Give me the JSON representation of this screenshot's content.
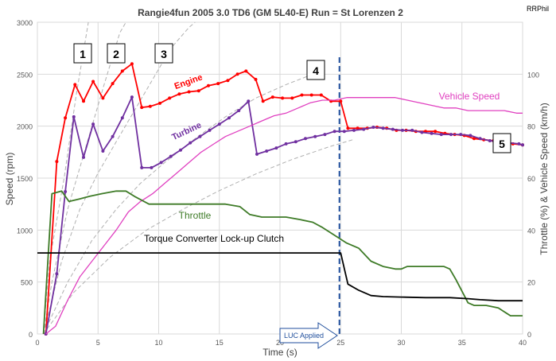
{
  "chart_data": {
    "type": "line",
    "title": "Rangie4fun   2005 3.0 TD6  (GM 5L40-E)   Run = St Lorenzen 2",
    "author": "RRPhil",
    "xlabel": "Time (s)",
    "ylabel_left": "Speed (rpm)",
    "ylabel_right": "Throttle (%) & Vehicle Speed (km/h)",
    "xlim": [
      0,
      40
    ],
    "ylim_left": [
      0,
      3000
    ],
    "ylim_right": [
      0,
      120
    ],
    "x_ticks": [
      "0",
      "5",
      "10",
      "15",
      "20",
      "25",
      "30",
      "35",
      "40"
    ],
    "y_left_ticks": [
      "0",
      "500",
      "1000",
      "1500",
      "2000",
      "2500",
      "3000"
    ],
    "y_right_ticks": [
      "0",
      "20",
      "40",
      "60",
      "80",
      "100"
    ],
    "grid": true,
    "series": [
      {
        "name": "Engine",
        "axis": "left",
        "color": "#ff0000",
        "points": [
          [
            0.7,
            0
          ],
          [
            1.6,
            1660
          ],
          [
            2.3,
            2080
          ],
          [
            3.1,
            2400
          ],
          [
            3.8,
            2240
          ],
          [
            4.6,
            2430
          ],
          [
            5.4,
            2270
          ],
          [
            6.2,
            2410
          ],
          [
            7.0,
            2530
          ],
          [
            7.8,
            2600
          ],
          [
            8.6,
            2180
          ],
          [
            9.3,
            2190
          ],
          [
            10.1,
            2220
          ],
          [
            10.9,
            2270
          ],
          [
            11.7,
            2310
          ],
          [
            12.5,
            2330
          ],
          [
            13.3,
            2340
          ],
          [
            14.1,
            2390
          ],
          [
            14.9,
            2410
          ],
          [
            15.7,
            2440
          ],
          [
            16.5,
            2500
          ],
          [
            17.2,
            2530
          ],
          [
            18.0,
            2450
          ],
          [
            18.6,
            2240
          ],
          [
            19.4,
            2280
          ],
          [
            20.2,
            2270
          ],
          [
            21.0,
            2270
          ],
          [
            21.8,
            2300
          ],
          [
            22.6,
            2300
          ],
          [
            23.4,
            2300
          ],
          [
            24.2,
            2240
          ],
          [
            25.0,
            2240
          ],
          [
            25.6,
            1980
          ],
          [
            26.4,
            1980
          ],
          [
            27.2,
            1980
          ],
          [
            28.0,
            1990
          ],
          [
            28.8,
            1980
          ],
          [
            29.6,
            1960
          ],
          [
            30.4,
            1960
          ],
          [
            31.2,
            1950
          ],
          [
            32.0,
            1950
          ],
          [
            32.8,
            1950
          ],
          [
            33.6,
            1930
          ],
          [
            34.4,
            1920
          ],
          [
            35.2,
            1910
          ],
          [
            36.0,
            1880
          ],
          [
            36.8,
            1870
          ],
          [
            37.6,
            1860
          ],
          [
            38.4,
            1860
          ],
          [
            39.2,
            1830
          ],
          [
            40.0,
            1820
          ]
        ]
      },
      {
        "name": "Turbine",
        "axis": "left",
        "color": "#7030a0",
        "points": [
          [
            0.7,
            0
          ],
          [
            1.6,
            580
          ],
          [
            2.3,
            1370
          ],
          [
            3.0,
            2090
          ],
          [
            3.8,
            1700
          ],
          [
            4.6,
            2020
          ],
          [
            5.4,
            1760
          ],
          [
            6.2,
            1900
          ],
          [
            7.0,
            2080
          ],
          [
            7.8,
            2280
          ],
          [
            8.6,
            1600
          ],
          [
            9.4,
            1600
          ],
          [
            10.2,
            1650
          ],
          [
            11.0,
            1710
          ],
          [
            11.8,
            1770
          ],
          [
            12.6,
            1840
          ],
          [
            13.4,
            1900
          ],
          [
            14.2,
            1960
          ],
          [
            15.0,
            2020
          ],
          [
            15.8,
            2080
          ],
          [
            16.6,
            2150
          ],
          [
            17.4,
            2240
          ],
          [
            18.1,
            1730
          ],
          [
            18.9,
            1760
          ],
          [
            19.7,
            1790
          ],
          [
            20.5,
            1830
          ],
          [
            21.3,
            1850
          ],
          [
            22.1,
            1880
          ],
          [
            22.9,
            1900
          ],
          [
            23.7,
            1920
          ],
          [
            24.5,
            1950
          ],
          [
            25.3,
            1950
          ],
          [
            26.1,
            1960
          ],
          [
            26.9,
            1970
          ],
          [
            27.7,
            1990
          ],
          [
            28.5,
            1980
          ],
          [
            29.3,
            1970
          ],
          [
            30.1,
            1960
          ],
          [
            30.9,
            1960
          ],
          [
            31.7,
            1940
          ],
          [
            32.5,
            1930
          ],
          [
            33.3,
            1920
          ],
          [
            34.1,
            1920
          ],
          [
            34.9,
            1920
          ],
          [
            35.7,
            1910
          ],
          [
            36.5,
            1880
          ],
          [
            37.3,
            1860
          ],
          [
            38.1,
            1850
          ],
          [
            38.9,
            1840
          ],
          [
            39.7,
            1830
          ],
          [
            40.0,
            1820
          ]
        ]
      },
      {
        "name": "Vehicle Speed",
        "axis": "right",
        "color": "#e040c0",
        "points": [
          [
            0.7,
            0
          ],
          [
            1.5,
            3
          ],
          [
            2.5,
            13
          ],
          [
            3.5,
            22
          ],
          [
            4.5,
            28
          ],
          [
            5.5,
            34
          ],
          [
            6.5,
            40
          ],
          [
            7.5,
            47
          ],
          [
            8.5,
            51
          ],
          [
            9.5,
            54
          ],
          [
            10.5,
            58
          ],
          [
            11.5,
            62
          ],
          [
            12.5,
            66
          ],
          [
            13.5,
            70
          ],
          [
            14.5,
            73
          ],
          [
            15.5,
            76
          ],
          [
            16.5,
            78
          ],
          [
            17.5,
            80
          ],
          [
            18.5,
            82
          ],
          [
            19.5,
            84
          ],
          [
            20.5,
            85
          ],
          [
            21.5,
            87
          ],
          [
            22.5,
            89
          ],
          [
            23.5,
            90
          ],
          [
            24.5,
            90
          ],
          [
            25.5,
            91
          ],
          [
            26.5,
            91
          ],
          [
            27.5,
            91
          ],
          [
            28.5,
            91
          ],
          [
            29.5,
            91
          ],
          [
            30.5,
            90
          ],
          [
            31.5,
            89
          ],
          [
            32.5,
            88
          ],
          [
            33.5,
            87
          ],
          [
            34.5,
            87
          ],
          [
            35.5,
            86
          ],
          [
            36.5,
            86
          ],
          [
            37.5,
            86
          ],
          [
            38.5,
            86
          ],
          [
            39.5,
            85
          ],
          [
            40.0,
            85
          ]
        ]
      },
      {
        "name": "Throttle",
        "axis": "right",
        "color": "#3e7b27",
        "points": [
          [
            0.5,
            0
          ],
          [
            1.2,
            54
          ],
          [
            2.0,
            55
          ],
          [
            2.6,
            51
          ],
          [
            3.5,
            52
          ],
          [
            4.3,
            53
          ],
          [
            5.3,
            54
          ],
          [
            6.5,
            55
          ],
          [
            7.3,
            55
          ],
          [
            8.0,
            53
          ],
          [
            9.2,
            50
          ],
          [
            10.5,
            50
          ],
          [
            12.0,
            50
          ],
          [
            13.5,
            50
          ],
          [
            15.5,
            50
          ],
          [
            16.7,
            49
          ],
          [
            17.5,
            46
          ],
          [
            18.5,
            45
          ],
          [
            19.5,
            45
          ],
          [
            20.5,
            45
          ],
          [
            21.7,
            44
          ],
          [
            22.7,
            43
          ],
          [
            23.5,
            41
          ],
          [
            24.5,
            38
          ],
          [
            25.5,
            35
          ],
          [
            26.5,
            33
          ],
          [
            27.5,
            28
          ],
          [
            28.5,
            26
          ],
          [
            29.5,
            25
          ],
          [
            30.0,
            25
          ],
          [
            30.5,
            26
          ],
          [
            31.5,
            26
          ],
          [
            32.5,
            26
          ],
          [
            33.5,
            26
          ],
          [
            34.0,
            25
          ],
          [
            34.5,
            21
          ],
          [
            35.5,
            12
          ],
          [
            36.0,
            11
          ],
          [
            37.0,
            11
          ],
          [
            38.0,
            10
          ],
          [
            39.0,
            7
          ],
          [
            40.0,
            7
          ]
        ]
      },
      {
        "name": "Torque Converter Lock-up Clutch",
        "axis": "left",
        "color": "#000000",
        "points": [
          [
            0,
            780
          ],
          [
            25.0,
            780
          ],
          [
            25.6,
            480
          ],
          [
            26.5,
            420
          ],
          [
            27.5,
            370
          ],
          [
            28.5,
            360
          ],
          [
            30,
            355
          ],
          [
            32,
            350
          ],
          [
            34,
            350
          ],
          [
            35.5,
            340
          ],
          [
            36.5,
            330
          ],
          [
            38,
            320
          ],
          [
            40,
            320
          ]
        ]
      }
    ],
    "reference_curves": {
      "color": "#b0b0b0",
      "style": "dashed",
      "curves": [
        [
          [
            0.5,
            0
          ],
          [
            1.0,
            700
          ],
          [
            2.2,
            1500
          ],
          [
            3.2,
            2300
          ],
          [
            4.2,
            3000
          ]
        ],
        [
          [
            0.5,
            0
          ],
          [
            1.2,
            500
          ],
          [
            2.5,
            1200
          ],
          [
            4.0,
            1800
          ],
          [
            5.5,
            2400
          ],
          [
            6.8,
            2900
          ],
          [
            7.3,
            3000
          ]
        ],
        [
          [
            0.5,
            0
          ],
          [
            2.0,
            700
          ],
          [
            3.5,
            1200
          ],
          [
            5.0,
            1550
          ],
          [
            6.5,
            1850
          ],
          [
            8.0,
            2150
          ],
          [
            9.5,
            2450
          ],
          [
            11.0,
            2750
          ],
          [
            12.5,
            2950
          ],
          [
            13.0,
            3000
          ]
        ],
        [
          [
            0.5,
            0
          ],
          [
            2.5,
            500
          ],
          [
            4.5,
            900
          ],
          [
            6.5,
            1200
          ],
          [
            8.5,
            1450
          ],
          [
            10.5,
            1650
          ],
          [
            13.0,
            1880
          ],
          [
            15.5,
            2090
          ],
          [
            18.0,
            2270
          ],
          [
            20.5,
            2400
          ],
          [
            22.5,
            2490
          ]
        ],
        [
          [
            0.5,
            0
          ],
          [
            3.0,
            400
          ],
          [
            6.0,
            740
          ],
          [
            9.0,
            1000
          ],
          [
            12.0,
            1200
          ],
          [
            15.0,
            1380
          ],
          [
            18.0,
            1540
          ],
          [
            21.0,
            1680
          ],
          [
            24.0,
            1800
          ],
          [
            26.0,
            1870
          ]
        ]
      ]
    },
    "luc_applied_time": 24.9,
    "annotations": [
      {
        "label": "Engine",
        "color": "#ff0000"
      },
      {
        "label": "Turbine",
        "color": "#7030a0"
      },
      {
        "label": "Vehicle Speed",
        "color": "#e040c0"
      },
      {
        "label": "Throttle",
        "color": "#3e7b27"
      },
      {
        "label": "Torque Converter Lock-up Clutch",
        "color": "#000000"
      },
      {
        "label": "LUC Applied",
        "color": "#1f4e9c"
      }
    ],
    "gear_labels": [
      "1",
      "2",
      "3",
      "4",
      "5"
    ]
  }
}
